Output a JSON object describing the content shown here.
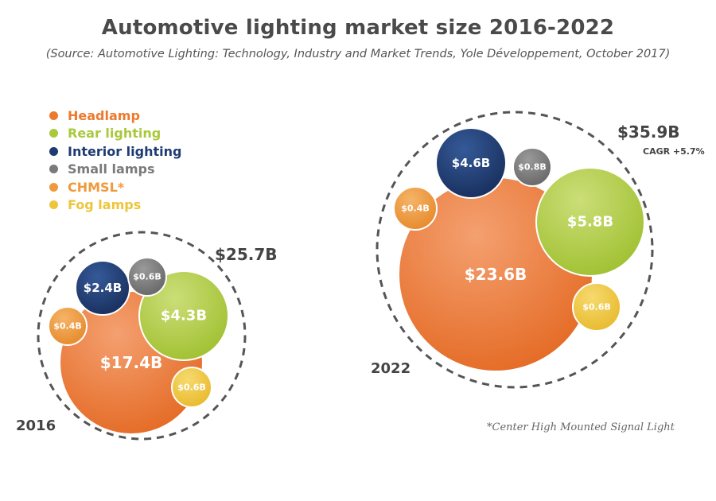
{
  "title": "Automotive lighting market size 2016-2022",
  "subtitle": "(Source: Automotive Lighting: Technology, Industry and Market Trends, Yole Développement, October 2017)",
  "footnote": "*Center High Mounted Signal Light",
  "legend": [
    {
      "label": "Headlamp",
      "color": "#ec7a2e"
    },
    {
      "label": "Rear lighting",
      "color": "#a9c83c"
    },
    {
      "label": "Interior lighting",
      "color": "#1f3b73"
    },
    {
      "label": "Small lamps",
      "color": "#7a7a7a"
    },
    {
      "label": "CHMSL*",
      "color": "#ee9a3c"
    },
    {
      "label": "Fog lamps",
      "color": "#eec53a"
    }
  ],
  "chart_data": {
    "type": "bubble",
    "title": "Automotive lighting market size 2016-2022",
    "units": "$B",
    "categories": [
      "Headlamp",
      "Rear lighting",
      "Interior lighting",
      "Small lamps",
      "CHMSL*",
      "Fog lamps"
    ],
    "groups": [
      {
        "year": "2016",
        "total_label": "$25.7B",
        "note": "",
        "values": [
          17.4,
          4.3,
          2.4,
          0.6,
          0.4,
          0.6
        ],
        "value_labels": [
          "$17.4B",
          "$4.3B",
          "$2.4B",
          "$0.6B",
          "$0.4B",
          "$0.6B"
        ]
      },
      {
        "year": "2022",
        "total_label": "$35.9B",
        "note": "CAGR +5.7%",
        "values": [
          23.6,
          5.8,
          4.6,
          0.8,
          0.4,
          0.6
        ],
        "value_labels": [
          "$23.6B",
          "$5.8B",
          "$4.6B",
          "$0.8B",
          "$0.4B",
          "$0.6B"
        ]
      }
    ]
  }
}
